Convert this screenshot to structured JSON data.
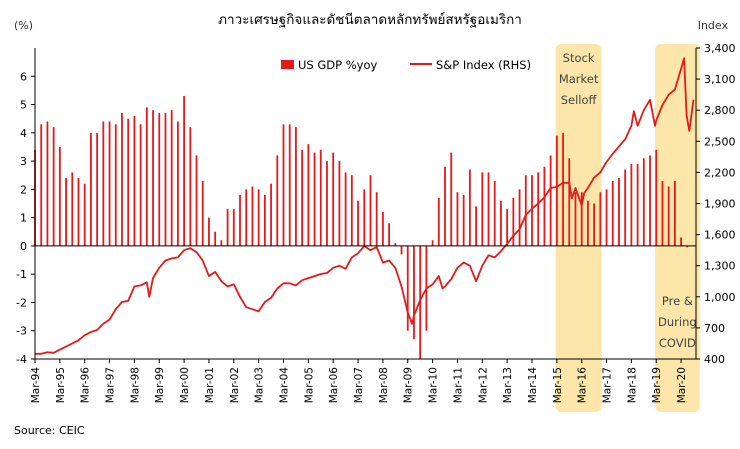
{
  "chart_data": {
    "type": "bar+line",
    "title": "ภาวะเศรษฐกิจและดัชนีตลาดหลักทรัพย์สหรัฐอเมริกา",
    "ylabel_left": "(%)",
    "ylabel_right": "Index",
    "source": "Source: CEIC",
    "y_left": {
      "min": -4,
      "max": 7,
      "ticks": [
        -4,
        -3,
        -2,
        -1,
        0,
        1,
        2,
        3,
        4,
        5,
        6,
        7
      ]
    },
    "y_right": {
      "min": 400,
      "max": 3400,
      "ticks": [
        400,
        700,
        1000,
        1300,
        1600,
        1900,
        2200,
        2500,
        2800,
        3100,
        3400
      ],
      "tick_labels": [
        "400",
        "700",
        "1,000",
        "1,300",
        "1,600",
        "1,900",
        "2,200",
        "2,500",
        "2,800",
        "3,100",
        "3,400"
      ]
    },
    "x_ticks": [
      "Mar-94",
      "Mar-95",
      "Mar-96",
      "Mar-97",
      "Mar-98",
      "Mar-99",
      "Mar-00",
      "Mar-01",
      "Mar-02",
      "Mar-03",
      "Mar-04",
      "Mar-05",
      "Mar-06",
      "Mar-07",
      "Mar-08",
      "Mar-09",
      "Mar-10",
      "Mar-11",
      "Mar-12",
      "Mar-13",
      "Mar-14",
      "Mar-15",
      "Mar-16",
      "Mar-17",
      "Mar-18",
      "Mar-19",
      "Mar-20"
    ],
    "x_start": 1994.0,
    "x_end": 2020.6,
    "legend": {
      "placement": "top-center",
      "gdp_label": "US GDP %yoy",
      "sp_label": "S&P Index (RHS)"
    },
    "series": [
      {
        "name": "US GDP %yoy",
        "type": "bar",
        "color": "#e41a1a",
        "axis": "left",
        "x": [
          1994.0,
          1994.25,
          1994.5,
          1994.75,
          1995.0,
          1995.25,
          1995.5,
          1995.75,
          1996.0,
          1996.25,
          1996.5,
          1996.75,
          1997.0,
          1997.25,
          1997.5,
          1997.75,
          1998.0,
          1998.25,
          1998.5,
          1998.75,
          1999.0,
          1999.25,
          1999.5,
          1999.75,
          2000.0,
          2000.25,
          2000.5,
          2000.75,
          2001.0,
          2001.25,
          2001.5,
          2001.75,
          2002.0,
          2002.25,
          2002.5,
          2002.75,
          2003.0,
          2003.25,
          2003.5,
          2003.75,
          2004.0,
          2004.25,
          2004.5,
          2004.75,
          2005.0,
          2005.25,
          2005.5,
          2005.75,
          2006.0,
          2006.25,
          2006.5,
          2006.75,
          2007.0,
          2007.25,
          2007.5,
          2007.75,
          2008.0,
          2008.25,
          2008.5,
          2008.75,
          2009.0,
          2009.25,
          2009.5,
          2009.75,
          2010.0,
          2010.25,
          2010.5,
          2010.75,
          2011.0,
          2011.25,
          2011.5,
          2011.75,
          2012.0,
          2012.25,
          2012.5,
          2012.75,
          2013.0,
          2013.25,
          2013.5,
          2013.75,
          2014.0,
          2014.25,
          2014.5,
          2014.75,
          2015.0,
          2015.25,
          2015.5,
          2015.75,
          2016.0,
          2016.25,
          2016.5,
          2016.75,
          2017.0,
          2017.25,
          2017.5,
          2017.75,
          2018.0,
          2018.25,
          2018.5,
          2018.75,
          2019.0,
          2019.25,
          2019.5,
          2019.75,
          2020.0,
          2020.25
        ],
        "values": [
          3.4,
          4.3,
          4.4,
          4.2,
          3.5,
          2.4,
          2.6,
          2.4,
          2.2,
          4.0,
          4.0,
          4.4,
          4.4,
          4.3,
          4.7,
          4.5,
          4.6,
          4.3,
          4.9,
          4.8,
          4.7,
          4.7,
          4.8,
          4.4,
          5.3,
          4.2,
          3.2,
          2.3,
          1.0,
          0.5,
          0.2,
          1.3,
          1.3,
          1.8,
          2.0,
          2.1,
          2.0,
          1.8,
          2.2,
          3.2,
          4.3,
          4.3,
          4.2,
          3.4,
          3.6,
          3.3,
          3.4,
          3.0,
          3.3,
          3.0,
          2.6,
          2.5,
          1.6,
          2.0,
          2.5,
          1.9,
          1.2,
          0.8,
          0.1,
          -0.3,
          -3.0,
          -3.3,
          -4.0,
          -3.0,
          0.2,
          1.7,
          2.8,
          3.3,
          1.9,
          1.8,
          2.7,
          1.4,
          2.6,
          2.6,
          2.3,
          1.6,
          1.3,
          1.7,
          2.0,
          2.5,
          2.5,
          2.6,
          2.8,
          3.2,
          3.9,
          4.0,
          3.1,
          1.9,
          1.9,
          1.6,
          1.5,
          1.9,
          2.0,
          2.3,
          2.4,
          2.7,
          2.9,
          2.9,
          3.1,
          3.2,
          3.4,
          2.3,
          2.1,
          2.3,
          0.3,
          -0.05
        ]
      },
      {
        "name": "S&P Index (RHS)",
        "type": "line",
        "color": "#e41a1a",
        "axis": "right",
        "x": [
          1994.0,
          1994.25,
          1994.5,
          1994.75,
          1995.0,
          1995.25,
          1995.5,
          1995.75,
          1996.0,
          1996.25,
          1996.5,
          1996.75,
          1997.0,
          1997.25,
          1997.5,
          1997.75,
          1998.0,
          1998.25,
          1998.5,
          1998.6,
          1998.75,
          1999.0,
          1999.25,
          1999.5,
          1999.75,
          2000.0,
          2000.25,
          2000.5,
          2000.75,
          2001.0,
          2001.25,
          2001.5,
          2001.75,
          2002.0,
          2002.25,
          2002.5,
          2002.75,
          2003.0,
          2003.25,
          2003.5,
          2003.75,
          2004.0,
          2004.25,
          2004.5,
          2004.75,
          2005.0,
          2005.25,
          2005.5,
          2005.75,
          2006.0,
          2006.25,
          2006.5,
          2006.75,
          2007.0,
          2007.25,
          2007.5,
          2007.75,
          2008.0,
          2008.25,
          2008.5,
          2008.75,
          2009.0,
          2009.17,
          2009.25,
          2009.5,
          2009.75,
          2010.0,
          2010.25,
          2010.4,
          2010.5,
          2010.75,
          2011.0,
          2011.25,
          2011.5,
          2011.75,
          2012.0,
          2012.25,
          2012.5,
          2012.75,
          2013.0,
          2013.25,
          2013.5,
          2013.75,
          2014.0,
          2014.25,
          2014.5,
          2014.75,
          2015.0,
          2015.25,
          2015.5,
          2015.6,
          2015.75,
          2016.0,
          2016.1,
          2016.25,
          2016.5,
          2016.75,
          2017.0,
          2017.25,
          2017.5,
          2017.75,
          2018.0,
          2018.1,
          2018.25,
          2018.5,
          2018.75,
          2018.95,
          2019.0,
          2019.25,
          2019.5,
          2019.75,
          2020.0,
          2020.12,
          2020.22,
          2020.33,
          2020.5
        ],
        "values": [
          450,
          450,
          465,
          460,
          490,
          520,
          550,
          580,
          630,
          660,
          680,
          740,
          780,
          880,
          950,
          960,
          1100,
          1110,
          1140,
          1000,
          1180,
          1280,
          1350,
          1370,
          1380,
          1450,
          1470,
          1430,
          1350,
          1200,
          1240,
          1150,
          1100,
          1120,
          1000,
          900,
          880,
          860,
          950,
          990,
          1080,
          1130,
          1130,
          1110,
          1160,
          1180,
          1200,
          1220,
          1230,
          1280,
          1300,
          1270,
          1380,
          1420,
          1490,
          1450,
          1480,
          1330,
          1350,
          1280,
          1100,
          850,
          740,
          820,
          970,
          1080,
          1120,
          1200,
          1080,
          1100,
          1170,
          1280,
          1330,
          1300,
          1150,
          1300,
          1400,
          1380,
          1440,
          1510,
          1590,
          1650,
          1790,
          1850,
          1900,
          1960,
          2050,
          2060,
          2100,
          2100,
          1950,
          2050,
          1880,
          2000,
          2050,
          2150,
          2200,
          2300,
          2380,
          2450,
          2520,
          2650,
          2790,
          2650,
          2800,
          2900,
          2650,
          2700,
          2850,
          2950,
          3000,
          3200,
          3300,
          2750,
          2600,
          2900
        ]
      }
    ],
    "annotations": [
      {
        "label_lines": [
          "Stock",
          "Market",
          "Selloff"
        ],
        "x_from": 2014.95,
        "x_to": 2016.8
      },
      {
        "label_lines": [
          "Pre &",
          "During",
          "COVID"
        ],
        "x_from": 2018.95,
        "x_to": 2020.75
      }
    ]
  }
}
